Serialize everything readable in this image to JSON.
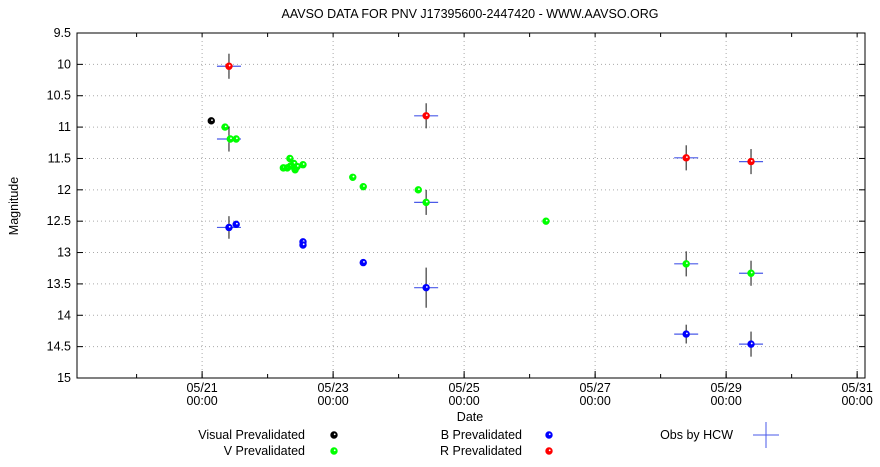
{
  "chart_data": {
    "type": "scatter",
    "title": "AAVSO DATA FOR PNV J17395600-2447420 - WWW.AAVSO.ORG",
    "xlabel": "Date",
    "ylabel": "Magnitude",
    "xlim": [
      19.09,
      31.12
    ],
    "ylim": [
      9.5,
      15
    ],
    "y_inverted": true,
    "grid": true,
    "x_ticks": [
      {
        "value": 21,
        "label": [
          "05/21",
          "00:00"
        ]
      },
      {
        "value": 23,
        "label": [
          "05/23",
          "00:00"
        ]
      },
      {
        "value": 25,
        "label": [
          "05/25",
          "00:00"
        ]
      },
      {
        "value": 27,
        "label": [
          "05/27",
          "00:00"
        ]
      },
      {
        "value": 29,
        "label": [
          "05/29",
          "00:00"
        ]
      },
      {
        "value": 31,
        "label": [
          "05/31",
          "00:00"
        ]
      }
    ],
    "y_ticks": [
      "9.5",
      "10",
      "10.5",
      "11",
      "11.5",
      "12",
      "12.5",
      "13",
      "13.5",
      "14",
      "14.5",
      "15"
    ],
    "legend_position": "bottom",
    "series": [
      {
        "name": "Visual Prevalidated",
        "color": "#000000",
        "points": [
          [
            21.14,
            10.9
          ]
        ]
      },
      {
        "name": "V Prevalidated",
        "color": "#00ff00",
        "points": [
          [
            21.35,
            11.0
          ],
          [
            21.43,
            11.19
          ],
          [
            21.52,
            11.19
          ],
          [
            22.24,
            11.65
          ],
          [
            22.3,
            11.65
          ],
          [
            22.34,
            11.5
          ],
          [
            22.35,
            11.62
          ],
          [
            22.4,
            11.58
          ],
          [
            22.42,
            11.68
          ],
          [
            22.45,
            11.63
          ],
          [
            22.54,
            11.6
          ],
          [
            23.3,
            11.8
          ],
          [
            23.46,
            11.95
          ],
          [
            24.3,
            12.0
          ],
          [
            24.42,
            12.2
          ],
          [
            26.25,
            12.5
          ],
          [
            28.39,
            13.18
          ],
          [
            29.38,
            13.33
          ]
        ]
      },
      {
        "name": "B Prevalidated",
        "color": "#0000ff",
        "points": [
          [
            21.41,
            12.6
          ],
          [
            21.52,
            12.55
          ],
          [
            22.54,
            12.83
          ],
          [
            22.54,
            12.88
          ],
          [
            23.46,
            13.16
          ],
          [
            24.42,
            13.56
          ],
          [
            28.39,
            14.3
          ],
          [
            29.38,
            14.46
          ]
        ]
      },
      {
        "name": "R Prevalidated",
        "color": "#ff0000",
        "points": [
          [
            21.41,
            10.03
          ],
          [
            24.42,
            10.82
          ],
          [
            28.39,
            11.49
          ],
          [
            29.38,
            11.55
          ]
        ]
      },
      {
        "name": "Obs by HCW",
        "color": "#4a5ae8",
        "marker": "cross",
        "points": [
          [
            21.41,
            10.03,
            0.2
          ],
          [
            21.41,
            11.19,
            0.2
          ],
          [
            21.41,
            12.6,
            0.18
          ],
          [
            24.42,
            10.82,
            0.2
          ],
          [
            24.42,
            12.2,
            0.2
          ],
          [
            24.42,
            13.56,
            0.32
          ],
          [
            28.39,
            11.49,
            0.2
          ],
          [
            28.39,
            13.18,
            0.2
          ],
          [
            28.39,
            14.3,
            0.15
          ],
          [
            29.38,
            11.55,
            0.2
          ],
          [
            29.38,
            13.33,
            0.2
          ],
          [
            29.38,
            14.46,
            0.2
          ]
        ]
      }
    ]
  }
}
